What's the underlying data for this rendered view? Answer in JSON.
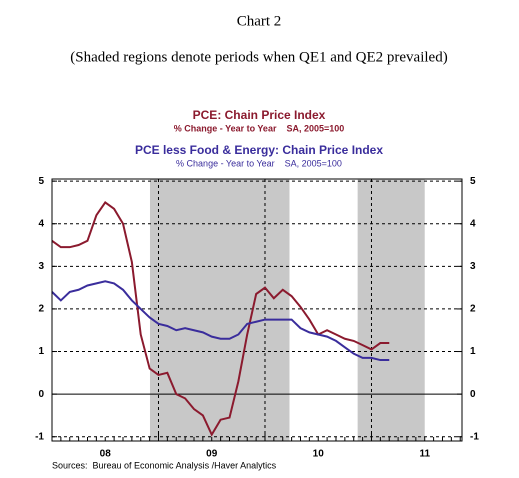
{
  "chart_data": {
    "type": "line",
    "title": "Chart 2",
    "subtitle": "(Shaded regions denote periods when QE1 and QE2 prevailed)",
    "source": "Sources:  Bureau of Economic Analysis /Haver Analytics",
    "x": [
      2008,
      2008.083,
      2008.167,
      2008.25,
      2008.333,
      2008.417,
      2008.5,
      2008.583,
      2008.667,
      2008.75,
      2008.833,
      2008.917,
      2009,
      2009.083,
      2009.167,
      2009.25,
      2009.333,
      2009.417,
      2009.5,
      2009.583,
      2009.667,
      2009.75,
      2009.833,
      2009.917,
      2010,
      2010.083,
      2010.167,
      2010.25,
      2010.333,
      2010.417,
      2010.5,
      2010.583,
      2010.667,
      2010.75,
      2010.833,
      2010.917,
      2011,
      2011.083,
      2011.167
    ],
    "series": [
      {
        "name": "PCE: Chain Price Index",
        "note": "% Change - Year to Year    SA, 2005=100",
        "color": "#8b1a2e",
        "values": [
          3.6,
          3.45,
          3.45,
          3.5,
          3.6,
          4.2,
          4.5,
          4.35,
          4.0,
          3.1,
          1.4,
          0.6,
          0.45,
          0.5,
          0.0,
          -0.1,
          -0.35,
          -0.5,
          -0.95,
          -0.6,
          -0.55,
          0.3,
          1.4,
          2.35,
          2.5,
          2.25,
          2.45,
          2.3,
          2.05,
          1.75,
          1.4,
          1.5,
          1.4,
          1.3,
          1.25,
          1.15,
          1.05,
          1.2,
          1.2
        ]
      },
      {
        "name": "PCE less Food & Energy: Chain Price Index",
        "note": "% Change - Year to Year    SA, 2005=100",
        "color": "#3a2d9c",
        "values": [
          2.4,
          2.2,
          2.4,
          2.45,
          2.55,
          2.6,
          2.65,
          2.6,
          2.45,
          2.2,
          2.0,
          1.8,
          1.65,
          1.6,
          1.5,
          1.55,
          1.5,
          1.45,
          1.35,
          1.3,
          1.3,
          1.4,
          1.65,
          1.7,
          1.75,
          1.75,
          1.75,
          1.75,
          1.55,
          1.45,
          1.4,
          1.35,
          1.25,
          1.1,
          0.95,
          0.85,
          0.85,
          0.8,
          0.8
        ]
      }
    ],
    "shaded": [
      [
        2008.92,
        2010.23
      ],
      [
        2010.87,
        2011.5
      ]
    ],
    "xlim": [
      2008,
      2011.85
    ],
    "xticks": [
      {
        "value": 2008.5,
        "label": "08"
      },
      {
        "value": 2009.5,
        "label": "09"
      },
      {
        "value": 2010.5,
        "label": "10"
      },
      {
        "value": 2011.5,
        "label": "11"
      }
    ],
    "xgrid": [
      2009,
      2010,
      2011
    ],
    "ylim": [
      -1.1,
      5.05
    ],
    "yticks": [
      -1,
      0,
      1,
      2,
      3,
      4,
      5
    ],
    "grid": true
  }
}
